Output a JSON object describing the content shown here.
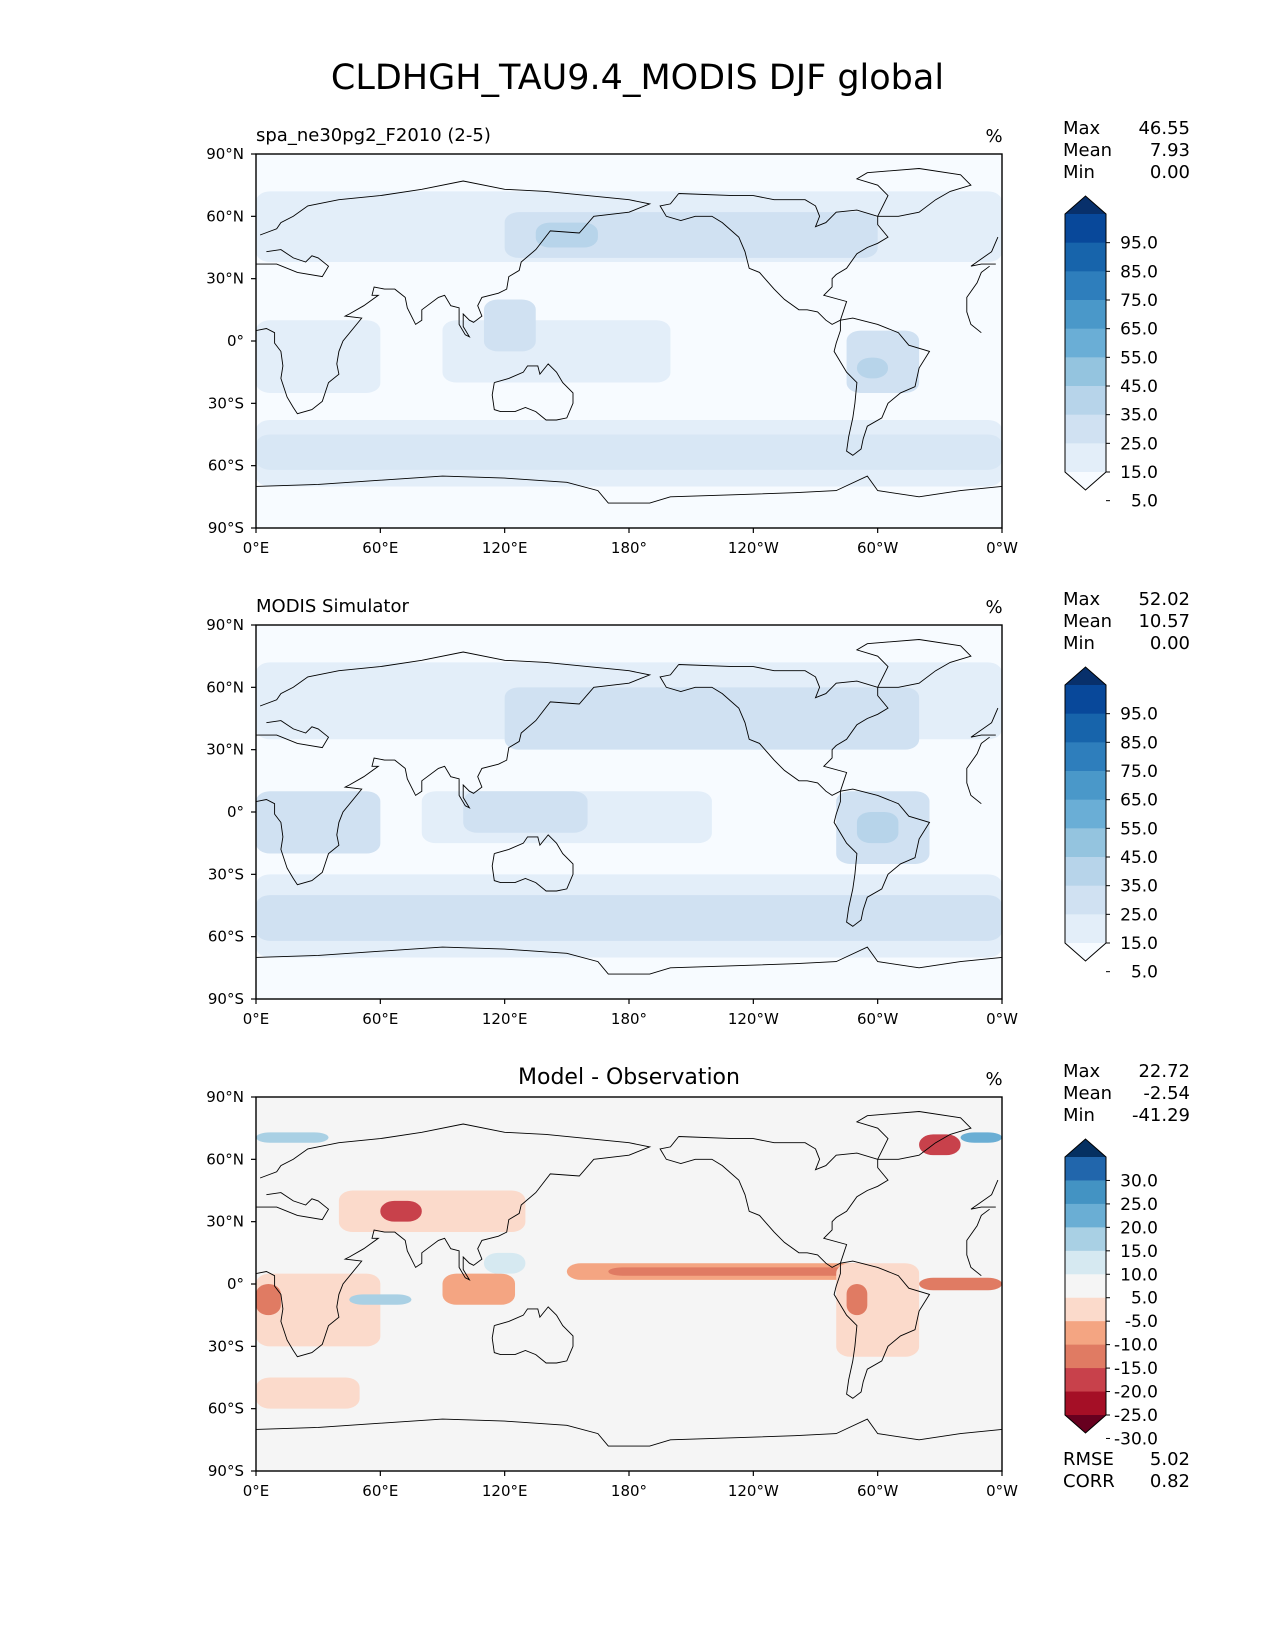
{
  "title": "CLDHGH_TAU9.4_MODIS DJF global",
  "x_ticks": [
    "0°E",
    "60°E",
    "120°E",
    "180°",
    "120°W",
    "60°W",
    "0°W"
  ],
  "y_ticks": [
    "90°N",
    "60°N",
    "30°N",
    "0°",
    "30°S",
    "60°S",
    "90°S"
  ],
  "panels": [
    {
      "id": "model",
      "left_title": "spa_ne30pg2_F2010 (2-5)",
      "center_title": "",
      "units": "%",
      "stats": [
        {
          "label": "Max",
          "value": "46.55"
        },
        {
          "label": "Mean",
          "value": "7.93"
        },
        {
          "label": "Min",
          "value": "0.00"
        }
      ],
      "colorbar": {
        "labels": [
          "95.0",
          "85.0",
          "75.0",
          "65.0",
          "55.0",
          "45.0",
          "35.0",
          "25.0",
          "15.0",
          "5.0"
        ],
        "colors": [
          "#08306b",
          "#08489a",
          "#1764ab",
          "#2e7ebc",
          "#4a98c9",
          "#6aaed6",
          "#94c4df",
          "#b7d4ea",
          "#d0e1f2",
          "#e3eef9",
          "#f7fbff"
        ]
      },
      "field": {
        "background": "#f7fbff",
        "regions": [
          {
            "lon": [
              0,
              360
            ],
            "lat": [
              -70,
              -38
            ],
            "color": "#e3eef9"
          },
          {
            "lon": [
              0,
              360
            ],
            "lat": [
              -62,
              -45
            ],
            "color": "#d8e7f5"
          },
          {
            "lon": [
              0,
              360
            ],
            "lat": [
              38,
              72
            ],
            "color": "#e3eef9"
          },
          {
            "lon": [
              120,
              300
            ],
            "lat": [
              40,
              62
            ],
            "color": "#d0e1f2"
          },
          {
            "lon": [
              135,
              165
            ],
            "lat": [
              45,
              57
            ],
            "color": "#b7d4ea"
          },
          {
            "lon": [
              0,
              60
            ],
            "lat": [
              -25,
              10
            ],
            "color": "#e3eef9"
          },
          {
            "lon": [
              90,
              200
            ],
            "lat": [
              -20,
              10
            ],
            "color": "#e3eef9"
          },
          {
            "lon": [
              285,
              320
            ],
            "lat": [
              -25,
              5
            ],
            "color": "#d0e1f2"
          },
          {
            "lon": [
              290,
              305
            ],
            "lat": [
              -18,
              -8
            ],
            "color": "#b7d4ea"
          },
          {
            "lon": [
              110,
              135
            ],
            "lat": [
              -5,
              20
            ],
            "color": "#d0e1f2"
          }
        ]
      },
      "rmse": null,
      "corr": null
    },
    {
      "id": "obs",
      "left_title": "MODIS Simulator",
      "center_title": "",
      "units": "%",
      "stats": [
        {
          "label": "Max",
          "value": "52.02"
        },
        {
          "label": "Mean",
          "value": "10.57"
        },
        {
          "label": "Min",
          "value": "0.00"
        }
      ],
      "colorbar": {
        "labels": [
          "95.0",
          "85.0",
          "75.0",
          "65.0",
          "55.0",
          "45.0",
          "35.0",
          "25.0",
          "15.0",
          "5.0"
        ],
        "colors": [
          "#08306b",
          "#08489a",
          "#1764ab",
          "#2e7ebc",
          "#4a98c9",
          "#6aaed6",
          "#94c4df",
          "#b7d4ea",
          "#d0e1f2",
          "#e3eef9",
          "#f7fbff"
        ]
      },
      "field": {
        "background": "#f7fbff",
        "regions": [
          {
            "lon": [
              0,
              360
            ],
            "lat": [
              -70,
              -30
            ],
            "color": "#e3eef9"
          },
          {
            "lon": [
              0,
              360
            ],
            "lat": [
              -62,
              -40
            ],
            "color": "#d0e1f2"
          },
          {
            "lon": [
              0,
              360
            ],
            "lat": [
              35,
              72
            ],
            "color": "#e3eef9"
          },
          {
            "lon": [
              120,
              320
            ],
            "lat": [
              30,
              60
            ],
            "color": "#d0e1f2"
          },
          {
            "lon": [
              0,
              60
            ],
            "lat": [
              -20,
              10
            ],
            "color": "#d0e1f2"
          },
          {
            "lon": [
              80,
              220
            ],
            "lat": [
              -15,
              10
            ],
            "color": "#e3eef9"
          },
          {
            "lon": [
              100,
              160
            ],
            "lat": [
              -10,
              10
            ],
            "color": "#d0e1f2"
          },
          {
            "lon": [
              280,
              325
            ],
            "lat": [
              -25,
              10
            ],
            "color": "#d0e1f2"
          },
          {
            "lon": [
              290,
              310
            ],
            "lat": [
              -15,
              0
            ],
            "color": "#b7d4ea"
          }
        ]
      },
      "rmse": null,
      "corr": null
    },
    {
      "id": "diff",
      "left_title": "",
      "center_title": "Model - Observation",
      "units": "%",
      "stats": [
        {
          "label": "Max",
          "value": "22.72"
        },
        {
          "label": "Mean",
          "value": "-2.54"
        },
        {
          "label": "Min",
          "value": "-41.29"
        }
      ],
      "colorbar": {
        "labels": [
          "30.0",
          "25.0",
          "20.0",
          "15.0",
          "10.0",
          "5.0",
          "-5.0",
          "-10.0",
          "-15.0",
          "-20.0",
          "-25.0",
          "-30.0"
        ],
        "colors": [
          "#053061",
          "#2166ac",
          "#4393c3",
          "#6aaed4",
          "#a9d0e4",
          "#d6e9f1",
          "#f5f5f5",
          "#fbdacb",
          "#f4a582",
          "#e07b63",
          "#c8414b",
          "#a50f26",
          "#67001f"
        ]
      },
      "field": {
        "background": "#f5f5f5",
        "regions": [
          {
            "lon": [
              0,
              60
            ],
            "lat": [
              -30,
              5
            ],
            "color": "#fbdacb"
          },
          {
            "lon": [
              0,
              12
            ],
            "lat": [
              -15,
              0
            ],
            "color": "#e07b63"
          },
          {
            "lon": [
              40,
              130
            ],
            "lat": [
              25,
              45
            ],
            "color": "#fbdacb"
          },
          {
            "lon": [
              60,
              80
            ],
            "lat": [
              30,
              40
            ],
            "color": "#c8414b"
          },
          {
            "lon": [
              90,
              125
            ],
            "lat": [
              -10,
              5
            ],
            "color": "#f4a582"
          },
          {
            "lon": [
              150,
              300
            ],
            "lat": [
              2,
              10
            ],
            "color": "#f4a582"
          },
          {
            "lon": [
              170,
              290
            ],
            "lat": [
              4,
              8
            ],
            "color": "#e07b63"
          },
          {
            "lon": [
              320,
              360
            ],
            "lat": [
              -3,
              3
            ],
            "color": "#e07b63"
          },
          {
            "lon": [
              280,
              320
            ],
            "lat": [
              -35,
              10
            ],
            "color": "#fbdacb"
          },
          {
            "lon": [
              285,
              295
            ],
            "lat": [
              -15,
              0
            ],
            "color": "#e07b63"
          },
          {
            "lon": [
              0,
              50
            ],
            "lat": [
              -60,
              -45
            ],
            "color": "#fbdacb"
          },
          {
            "lon": [
              0,
              35
            ],
            "lat": [
              68,
              73
            ],
            "color": "#a9d0e4"
          },
          {
            "lon": [
              340,
              360
            ],
            "lat": [
              68,
              73
            ],
            "color": "#6aaed4"
          },
          {
            "lon": [
              320,
              340
            ],
            "lat": [
              62,
              72
            ],
            "color": "#c8414b"
          },
          {
            "lon": [
              45,
              75
            ],
            "lat": [
              -10,
              -5
            ],
            "color": "#a9d0e4"
          },
          {
            "lon": [
              110,
              130
            ],
            "lat": [
              5,
              15
            ],
            "color": "#d6e9f1"
          }
        ]
      },
      "rmse": {
        "label": "RMSE",
        "value": "5.02"
      },
      "corr": {
        "label": "CORR",
        "value": "0.82"
      }
    }
  ]
}
